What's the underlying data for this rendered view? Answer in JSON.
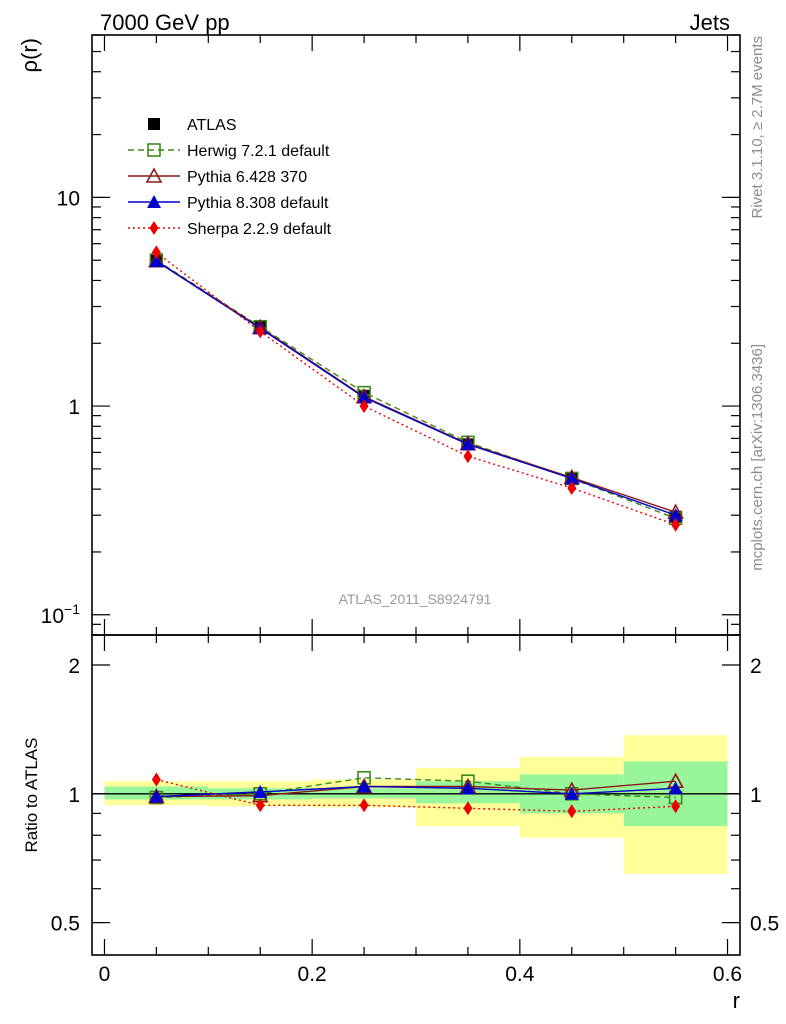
{
  "header": {
    "left": "7000 GeV pp",
    "right": "Jets"
  },
  "side": {
    "rivet": "Rivet 3.1.10, ≥ 2.7M events",
    "mcplots": "mcplots.cern.ch [arXiv:1306.3436]"
  },
  "watermark": "ATLAS_2011_S8924791",
  "chart_data": [
    {
      "type": "line",
      "panel": "main",
      "ylabel": "ρ(r)",
      "yscale": "log",
      "ylim": [
        0.08,
        60
      ],
      "xlim": [
        -0.012,
        0.612
      ],
      "y_ticks": [
        {
          "v": 0.1,
          "base": "10",
          "exp": "−1"
        },
        {
          "v": 1,
          "text": "1"
        },
        {
          "v": 10,
          "text": "10"
        }
      ],
      "x": [
        0.05,
        0.15,
        0.25,
        0.35,
        0.45,
        0.55
      ],
      "series": [
        {
          "name": "ATLAS",
          "color": "#000000",
          "marker": "square-filled",
          "line": "none",
          "values": [
            5.05,
            2.42,
            1.12,
            0.655,
            0.45,
            0.295
          ]
        },
        {
          "name": "Herwig 7.2.1 default",
          "color": "#3a8a1a",
          "marker": "square-open",
          "line": "dashed",
          "values": [
            5.0,
            2.4,
            1.16,
            0.67,
            0.45,
            0.29
          ]
        },
        {
          "name": "Pythia 6.428 370",
          "color": "#8b1a1a",
          "marker": "triangle-open",
          "line": "solid",
          "values": [
            4.97,
            2.38,
            1.11,
            0.66,
            0.455,
            0.31
          ]
        },
        {
          "name": "Pythia 8.308 default",
          "color": "#0000cc",
          "marker": "triangle-filled",
          "line": "solid",
          "values": [
            4.95,
            2.36,
            1.1,
            0.655,
            0.45,
            0.3
          ]
        },
        {
          "name": "Sherpa 2.2.9 default",
          "color": "#ee0000",
          "marker": "diamond-filled",
          "line": "dotted",
          "values": [
            5.45,
            2.28,
            1.0,
            0.575,
            0.405,
            0.27
          ]
        }
      ],
      "legend": "top-left"
    },
    {
      "type": "line",
      "panel": "ratio",
      "ylabel": "Ratio to ATLAS",
      "xlabel": "r",
      "yscale": "log",
      "ylim": [
        0.42,
        2.35
      ],
      "xlim": [
        -0.012,
        0.612
      ],
      "y_ticks": [
        {
          "v": 0.5,
          "text": "0.5"
        },
        {
          "v": 1,
          "text": "1"
        },
        {
          "v": 2,
          "text": "2"
        }
      ],
      "x_ticks": [
        {
          "v": 0,
          "text": "0"
        },
        {
          "v": 0.2,
          "text": "0.2"
        },
        {
          "v": 0.4,
          "text": "0.4"
        },
        {
          "v": 0.6,
          "text": "0.6"
        }
      ],
      "bins": [
        {
          "lo": 0.0,
          "hi": 0.1,
          "stat": [
            0.97,
            1.04
          ],
          "total": [
            0.94,
            1.07
          ]
        },
        {
          "lo": 0.1,
          "hi": 0.2,
          "stat": [
            0.97,
            1.03
          ],
          "total": [
            0.935,
            1.07
          ]
        },
        {
          "lo": 0.2,
          "hi": 0.3,
          "stat": [
            0.975,
            1.03
          ],
          "total": [
            0.93,
            1.08
          ]
        },
        {
          "lo": 0.3,
          "hi": 0.4,
          "stat": [
            0.95,
            1.07
          ],
          "total": [
            0.84,
            1.15
          ]
        },
        {
          "lo": 0.4,
          "hi": 0.5,
          "stat": [
            0.9,
            1.11
          ],
          "total": [
            0.79,
            1.22
          ]
        },
        {
          "lo": 0.5,
          "hi": 0.6,
          "stat": [
            0.84,
            1.19
          ],
          "total": [
            0.65,
            1.37
          ]
        }
      ],
      "x": [
        0.05,
        0.15,
        0.25,
        0.35,
        0.45,
        0.55
      ],
      "series": [
        {
          "name": "Herwig 7.2.1 default",
          "color": "#3a8a1a",
          "marker": "square-open",
          "line": "dashed",
          "values": [
            0.98,
            1.0,
            1.09,
            1.07,
            1.0,
            0.98
          ]
        },
        {
          "name": "Pythia 6.428 370",
          "color": "#8b1a1a",
          "marker": "triangle-open",
          "line": "solid",
          "values": [
            0.985,
            0.99,
            1.04,
            1.04,
            1.02,
            1.07
          ]
        },
        {
          "name": "Pythia 8.308 default",
          "color": "#0000cc",
          "marker": "triangle-filled",
          "line": "solid",
          "values": [
            0.985,
            1.01,
            1.04,
            1.03,
            1.0,
            1.03
          ]
        },
        {
          "name": "Sherpa 2.2.9 default",
          "color": "#ee0000",
          "marker": "diamond-filled",
          "line": "dotted",
          "values": [
            1.08,
            0.94,
            0.94,
            0.925,
            0.91,
            0.935
          ]
        }
      ]
    }
  ],
  "colors": {
    "stat_band": "#99f599",
    "total_band": "#ffff99"
  }
}
